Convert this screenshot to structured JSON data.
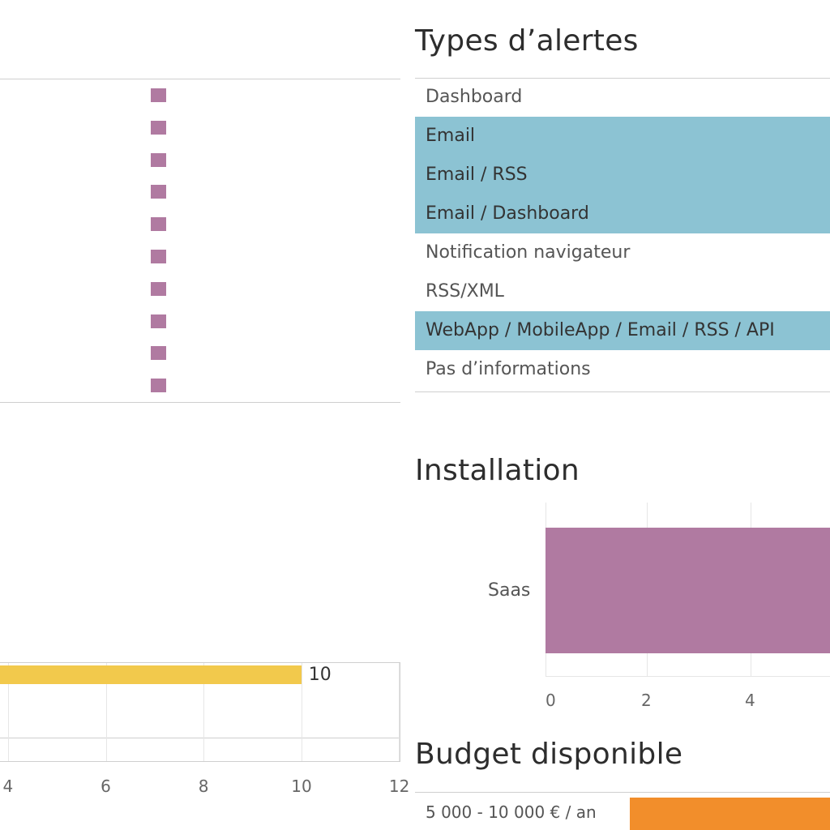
{
  "alert_types": {
    "title": "Types d’alertes",
    "rows": [
      {
        "label": "Dashboard",
        "highlighted": false
      },
      {
        "label": "Email",
        "highlighted": true
      },
      {
        "label": "Email / RSS",
        "highlighted": true
      },
      {
        "label": "Email / Dashboard",
        "highlighted": true
      },
      {
        "label": "Notification navigateur",
        "highlighted": false
      },
      {
        "label": "RSS/XML",
        "highlighted": false
      },
      {
        "label": "WebApp / MobileApp / Email / RSS / API",
        "highlighted": true
      },
      {
        "label": "Pas d’informations",
        "highlighted": false
      }
    ],
    "highlight_color": "#8cc3d3"
  },
  "installation": {
    "title": "Installation"
  },
  "budget": {
    "title": "Budget disponible",
    "row_label": "5 000 - 10 000 € / an",
    "bar_color": "#f28e2b"
  },
  "chart_data": [
    {
      "type": "scatter",
      "mark_shape": "square",
      "color": "#b07aa1",
      "points_visible": 10,
      "title": "",
      "xlabel": "",
      "ylabel": ""
    },
    {
      "type": "bar",
      "orientation": "horizontal",
      "color": "#f2c94c",
      "values": [
        10
      ],
      "data_labels": [
        "10"
      ],
      "x_ticks": [
        "4",
        "6",
        "8",
        "10",
        "12"
      ],
      "xlim": [
        3,
        12
      ],
      "grid": true,
      "title": "",
      "xlabel": "",
      "ylabel": ""
    },
    {
      "type": "bar",
      "orientation": "horizontal",
      "title": "Installation",
      "categories": [
        "Saas"
      ],
      "color": "#b07aa1",
      "x_ticks": [
        "0",
        "2",
        "4"
      ],
      "grid": true,
      "xlabel": "",
      "ylabel": ""
    }
  ]
}
